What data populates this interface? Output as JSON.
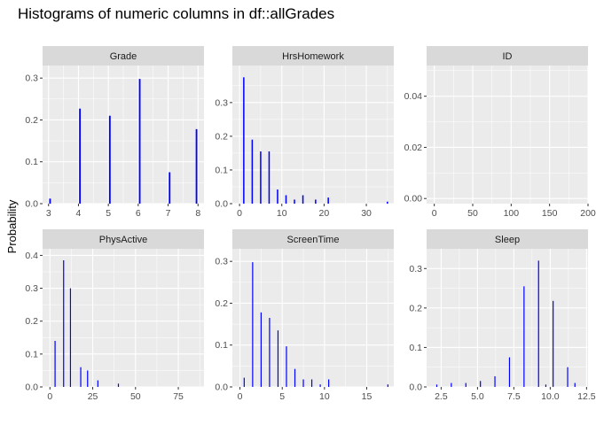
{
  "chart_data": {
    "type": "bar",
    "title": "Histograms of numeric columns in df::allGrades",
    "xlabel": "",
    "ylabel": "Probability",
    "bar_color": "#0000ff",
    "grid": true,
    "facets": [
      {
        "name": "Grade",
        "xlim": [
          2.8,
          8.2
        ],
        "ylim": [
          0,
          0.33
        ],
        "xticks": [
          3,
          4,
          5,
          6,
          7,
          8
        ],
        "yticks": [
          0,
          0.1,
          0.2,
          0.3
        ],
        "ytick_labels": [
          "0.0",
          "0.1",
          "0.2",
          "0.3"
        ],
        "bar_width": 0.055,
        "bars": [
          {
            "x": 3.05,
            "y": 0.012
          },
          {
            "x": 4.05,
            "y": 0.227
          },
          {
            "x": 5.05,
            "y": 0.21
          },
          {
            "x": 6.05,
            "y": 0.298
          },
          {
            "x": 7.05,
            "y": 0.075
          },
          {
            "x": 7.95,
            "y": 0.178
          }
        ]
      },
      {
        "name": "HrsHomework",
        "xlim": [
          -1.7,
          36.5
        ],
        "ylim": [
          0,
          0.41
        ],
        "xticks": [
          0,
          10,
          20,
          30
        ],
        "yticks": [
          0,
          0.1,
          0.2,
          0.3
        ],
        "ytick_labels": [
          "0.0",
          "0.1",
          "0.2",
          "0.3"
        ],
        "bar_width": 0.32,
        "bars": [
          {
            "x": 1,
            "y": 0.375
          },
          {
            "x": 3,
            "y": 0.19
          },
          {
            "x": 5,
            "y": 0.155
          },
          {
            "x": 7,
            "y": 0.155
          },
          {
            "x": 9,
            "y": 0.042
          },
          {
            "x": 11,
            "y": 0.025
          },
          {
            "x": 13,
            "y": 0.012
          },
          {
            "x": 15,
            "y": 0.025
          },
          {
            "x": 18,
            "y": 0.012
          },
          {
            "x": 21,
            "y": 0.018
          },
          {
            "x": 35,
            "y": 0.006
          }
        ]
      },
      {
        "name": "ID",
        "xlim": [
          -10,
          200
        ],
        "ylim": [
          -0.002,
          0.052
        ],
        "xticks": [
          0,
          50,
          100,
          150,
          200
        ],
        "yticks": [
          0,
          0.02,
          0.04
        ],
        "ytick_labels": [
          "0.00",
          "0.02",
          "0.04"
        ],
        "bar_width": 0.35,
        "bars": []
      },
      {
        "name": "PhysActive",
        "xlim": [
          -4.3,
          90
        ],
        "ylim": [
          0,
          0.42
        ],
        "xticks": [
          0,
          25,
          50,
          75
        ],
        "yticks": [
          0,
          0.1,
          0.2,
          0.3,
          0.4
        ],
        "ytick_labels": [
          "0.0",
          "0.1",
          "0.2",
          "0.3",
          "0.4"
        ],
        "bar_width": 0.3,
        "bars": [
          {
            "x": 3,
            "y": 0.14
          },
          {
            "x": 8,
            "y": 0.385
          },
          {
            "x": 12,
            "y": 0.3
          },
          {
            "x": 18,
            "y": 0.06
          },
          {
            "x": 22,
            "y": 0.05
          },
          {
            "x": 28,
            "y": 0.02
          },
          {
            "x": 40,
            "y": 0.01
          }
        ]
      },
      {
        "name": "ScreenTime",
        "xlim": [
          -0.9,
          18.2
        ],
        "ylim": [
          0,
          0.33
        ],
        "xticks": [
          0,
          5,
          10,
          15
        ],
        "yticks": [
          0,
          0.1,
          0.2,
          0.3
        ],
        "ytick_labels": [
          "0.0",
          "0.1",
          "0.2",
          "0.3"
        ],
        "bar_width": 0.06,
        "bars": [
          {
            "x": 0.5,
            "y": 0.022
          },
          {
            "x": 1.5,
            "y": 0.298
          },
          {
            "x": 2.5,
            "y": 0.178
          },
          {
            "x": 3.5,
            "y": 0.165
          },
          {
            "x": 4.5,
            "y": 0.135
          },
          {
            "x": 5.5,
            "y": 0.097
          },
          {
            "x": 6.5,
            "y": 0.043
          },
          {
            "x": 7.5,
            "y": 0.018
          },
          {
            "x": 8.5,
            "y": 0.018
          },
          {
            "x": 9.5,
            "y": 0.006
          },
          {
            "x": 10.5,
            "y": 0.018
          },
          {
            "x": 17.5,
            "y": 0.006
          }
        ]
      },
      {
        "name": "Sleep",
        "xlim": [
          1.5,
          12.6
        ],
        "ylim": [
          0,
          0.35
        ],
        "xticks": [
          2.5,
          5.0,
          7.5,
          10.0,
          12.5
        ],
        "yticks": [
          0,
          0.1,
          0.2,
          0.3
        ],
        "ytick_labels": [
          "0.0",
          "0.1",
          "0.2",
          "0.3"
        ],
        "bar_width": 0.05,
        "bars": [
          {
            "x": 2.2,
            "y": 0.006
          },
          {
            "x": 3.2,
            "y": 0.01
          },
          {
            "x": 4.2,
            "y": 0.01
          },
          {
            "x": 5.2,
            "y": 0.015
          },
          {
            "x": 6.2,
            "y": 0.027
          },
          {
            "x": 7.2,
            "y": 0.075
          },
          {
            "x": 8.2,
            "y": 0.255
          },
          {
            "x": 9.2,
            "y": 0.32
          },
          {
            "x": 10.2,
            "y": 0.218
          },
          {
            "x": 9.7,
            "y": 0.006
          },
          {
            "x": 11.2,
            "y": 0.05
          },
          {
            "x": 11.7,
            "y": 0.01
          }
        ]
      }
    ]
  }
}
